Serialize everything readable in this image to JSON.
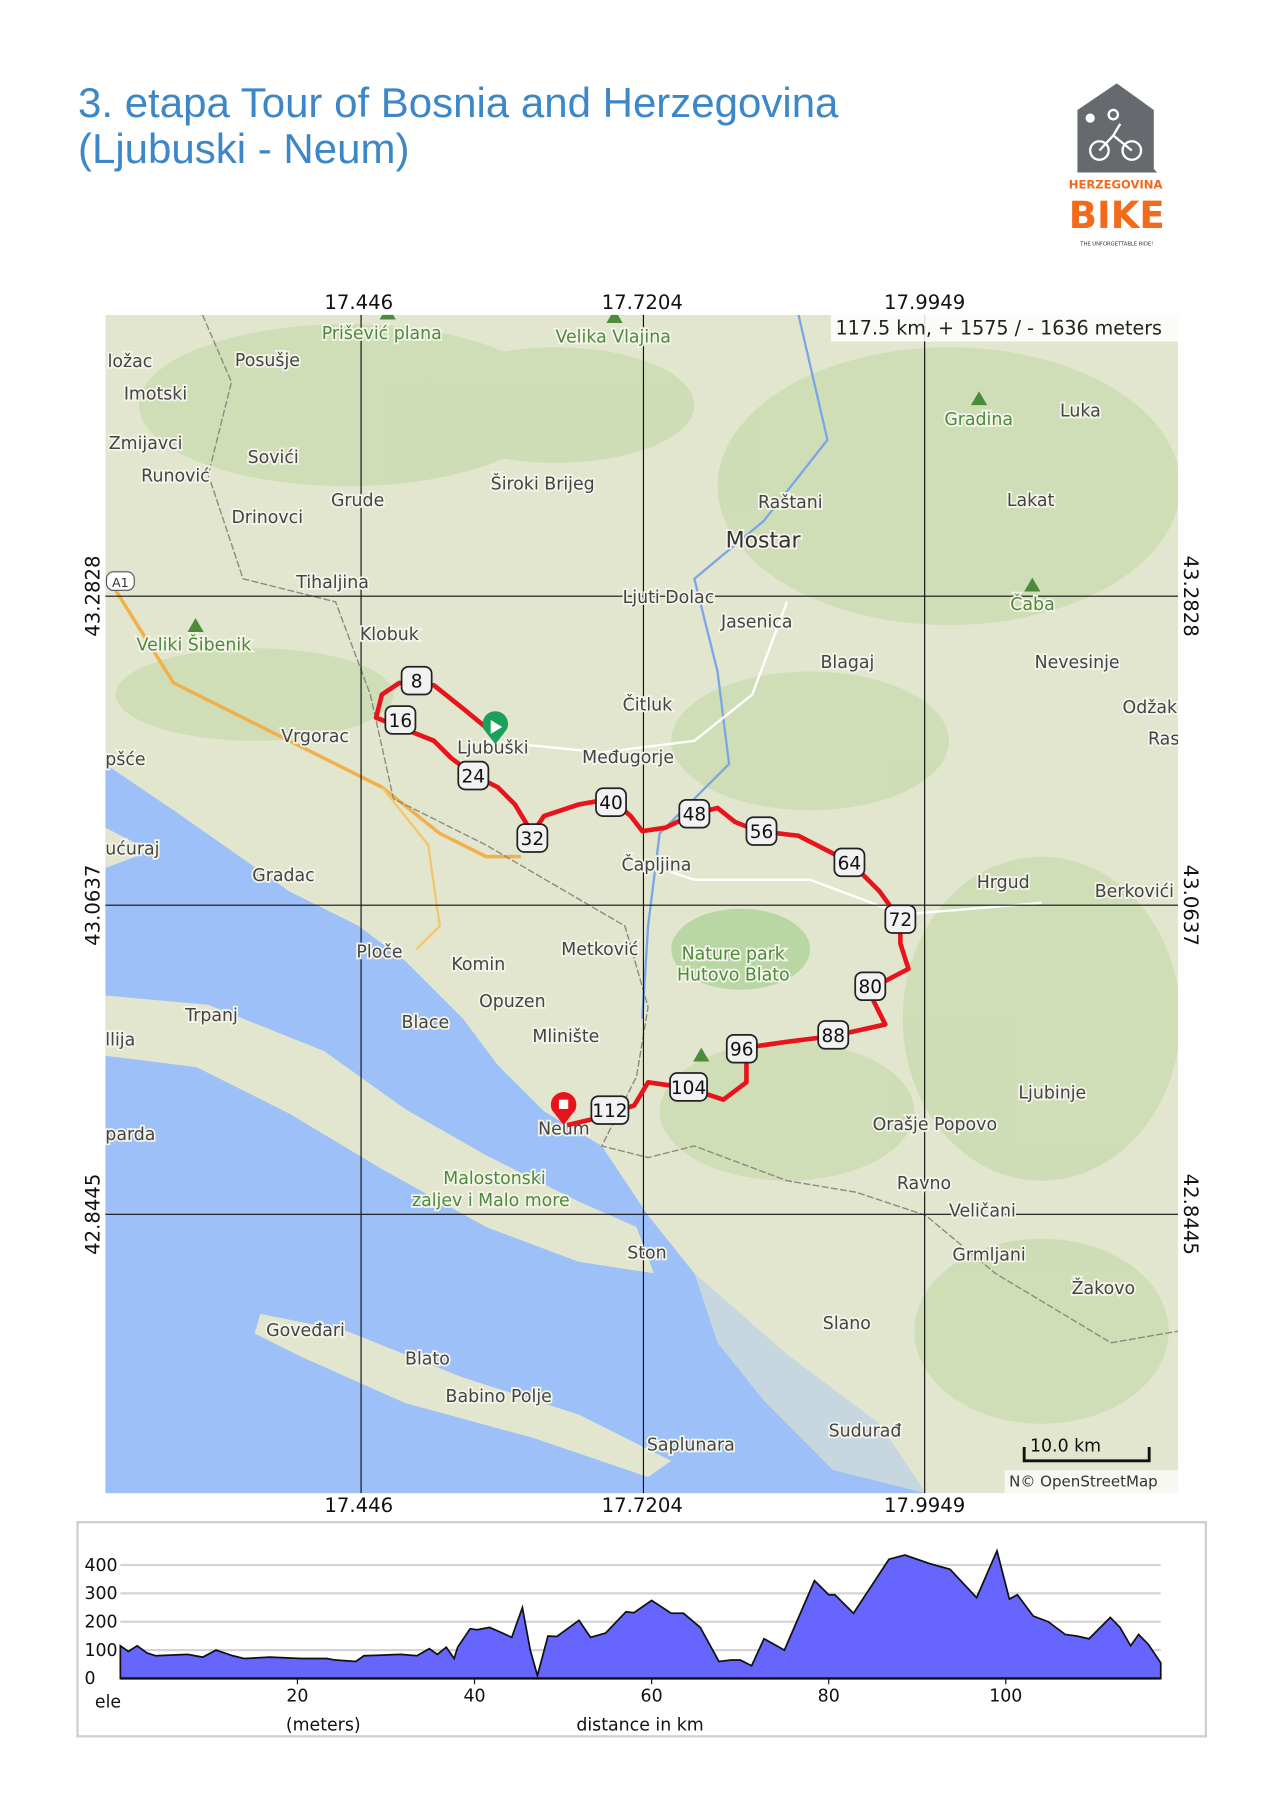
{
  "title": {
    "line1": "3. etapa Tour of Bosnia and Herzegovina",
    "line2": "(Ljubuski - Neum)"
  },
  "logo": {
    "text_top": "HERZEGOVINA",
    "text_main": "BIKE",
    "tagline": "THE UNFORGETTABLE RIDE!",
    "color": "#f26a1b"
  },
  "map": {
    "summary": "117.5 km, + 1575 / - 1636 meters",
    "lon_ticks": [
      "17.446",
      "17.7204",
      "17.9949"
    ],
    "lat_ticks": [
      "43.2828",
      "43.0637",
      "42.8445"
    ],
    "scale": "10.0 km",
    "attribution": "N© OpenStreetMap",
    "road_shield": "A1",
    "route_color": "#e8141c",
    "sea_color": "#9cc0f7",
    "places": [
      "Prišević plana",
      "Velika Vlajina",
      "Posušje",
      "Imotski",
      "ložac",
      "Zmijavci",
      "Runović",
      "Sovići",
      "Grude",
      "Drinovci",
      "Široki Brijeg",
      "Raštani",
      "Mostar",
      "Gradina",
      "Luka",
      "Lakat",
      "Tihaljina",
      "Ljuti Dolac",
      "Jasenica",
      "Čaba",
      "Klobuk",
      "Veliki Šibenik",
      "Blagaj",
      "Nevesinje",
      "Čitluk",
      "Odžak",
      "Ras",
      "Vrgorac",
      "Ljubuški",
      "Međugorje",
      "pšće",
      "Čapljina",
      "ućuraj",
      "Gradac",
      "Hrgud",
      "Berkovići",
      "Ploče",
      "Komin",
      "Metković",
      "Nature park",
      "Hutovo Blato",
      "Opuzen",
      "Trpanj",
      "Blace",
      "Mlinište",
      "llija",
      "Ljubinje",
      "Orašje Popovo",
      "Neum",
      "parda",
      "Malostonski",
      "zaljev i Malo more",
      "Ravno",
      "Veličani",
      "Grmljani",
      "Ston",
      "Žakovo",
      "Slano",
      "Goveđari",
      "Blato",
      "Babino Polje",
      "Sudurađ",
      "Saplunara"
    ],
    "km_markers": [
      "8",
      "16",
      "24",
      "32",
      "40",
      "48",
      "56",
      "64",
      "72",
      "80",
      "88",
      "96",
      "104",
      "112"
    ]
  },
  "chart_data": {
    "type": "area",
    "xlabel": "distance in km",
    "ylabel": "ele",
    "yunit": "(meters)",
    "xticks": [
      "20",
      "40",
      "60",
      "80",
      "100"
    ],
    "yticks": [
      "0",
      "100",
      "200",
      "300",
      "400"
    ],
    "xlim": [
      0,
      117.5
    ],
    "ylim": [
      0,
      450
    ],
    "grid": true,
    "fill_color": "#6666ff",
    "points": [
      [
        0,
        115
      ],
      [
        0.9,
        95
      ],
      [
        1.9,
        115
      ],
      [
        3,
        90
      ],
      [
        4,
        80
      ],
      [
        7.6,
        85
      ],
      [
        9.3,
        75
      ],
      [
        10.8,
        100
      ],
      [
        12.7,
        80
      ],
      [
        14,
        70
      ],
      [
        16.9,
        75
      ],
      [
        20.4,
        70
      ],
      [
        23.3,
        70
      ],
      [
        24.3,
        65
      ],
      [
        26.6,
        60
      ],
      [
        27.5,
        80
      ],
      [
        31.7,
        85
      ],
      [
        33.5,
        80
      ],
      [
        34.9,
        105
      ],
      [
        35.8,
        85
      ],
      [
        36.8,
        110
      ],
      [
        37.7,
        70
      ],
      [
        38.1,
        110
      ],
      [
        39.5,
        175
      ],
      [
        40.3,
        172
      ],
      [
        41.7,
        180
      ],
      [
        42.8,
        165
      ],
      [
        44.2,
        145
      ],
      [
        45.4,
        250
      ],
      [
        46.3,
        100
      ],
      [
        47.1,
        10
      ],
      [
        48.3,
        150
      ],
      [
        49.3,
        148
      ],
      [
        51.8,
        205
      ],
      [
        53.1,
        145
      ],
      [
        54.8,
        160
      ],
      [
        57.1,
        235
      ],
      [
        58,
        232
      ],
      [
        60,
        275
      ],
      [
        62.2,
        230
      ],
      [
        63.6,
        230
      ],
      [
        65.5,
        180
      ],
      [
        67.6,
        60
      ],
      [
        69,
        65
      ],
      [
        70,
        65
      ],
      [
        71.3,
        45
      ],
      [
        72.7,
        140
      ],
      [
        75,
        100
      ],
      [
        78.4,
        345
      ],
      [
        80,
        295
      ],
      [
        80.7,
        295
      ],
      [
        82.8,
        230
      ],
      [
        86.8,
        420
      ],
      [
        88.6,
        435
      ],
      [
        91.4,
        405
      ],
      [
        93.7,
        385
      ],
      [
        96.7,
        285
      ],
      [
        99,
        450
      ],
      [
        100.4,
        280
      ],
      [
        101.3,
        295
      ],
      [
        103.1,
        220
      ],
      [
        104.8,
        200
      ],
      [
        106.7,
        155
      ],
      [
        108,
        150
      ],
      [
        109.4,
        140
      ],
      [
        111.8,
        215
      ],
      [
        112.9,
        180
      ],
      [
        114.1,
        115
      ],
      [
        115,
        155
      ],
      [
        116.1,
        120
      ],
      [
        117.5,
        55
      ]
    ]
  }
}
